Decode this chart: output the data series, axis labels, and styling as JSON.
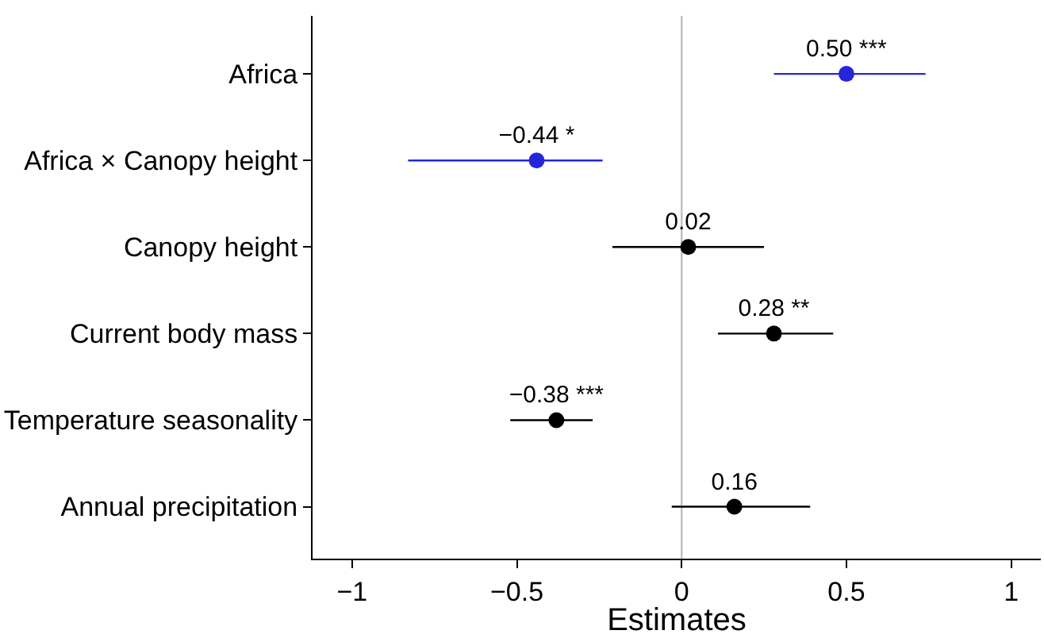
{
  "chart_data": {
    "type": "scatter",
    "orientation": "horizontal",
    "xlabel": "Estimates",
    "categories": [
      "Africa",
      "Africa × Canopy height",
      "Canopy height",
      "Current body mass",
      "Temperature seasonality",
      "Annual precipitation"
    ],
    "values": [
      0.5,
      -0.44,
      0.02,
      0.28,
      -0.38,
      0.16
    ],
    "errors": [
      [
        0.28,
        0.74
      ],
      [
        -0.83,
        -0.24
      ],
      [
        -0.21,
        0.25
      ],
      [
        0.11,
        0.46
      ],
      [
        -0.52,
        -0.27
      ],
      [
        -0.03,
        0.39
      ]
    ],
    "value_labels": [
      "0.50 ***",
      "−0.44 *",
      "0.02",
      "0.28 **",
      "−0.38 ***",
      "0.16"
    ],
    "colors": [
      "#2626d9",
      "#2626d9",
      "#000000",
      "#000000",
      "#000000",
      "#000000"
    ],
    "xlim": [
      -1.12,
      1.09
    ],
    "xticks": [
      {
        "value": -1,
        "label": "−1"
      },
      {
        "value": -0.5,
        "label": "−0.5"
      },
      0,
      0.5,
      1
    ],
    "ref_lines": [
      {
        "axis": "x",
        "value": 0,
        "color": "#bebebe"
      }
    ],
    "marker": "circle",
    "grid": false,
    "legend": false
  }
}
